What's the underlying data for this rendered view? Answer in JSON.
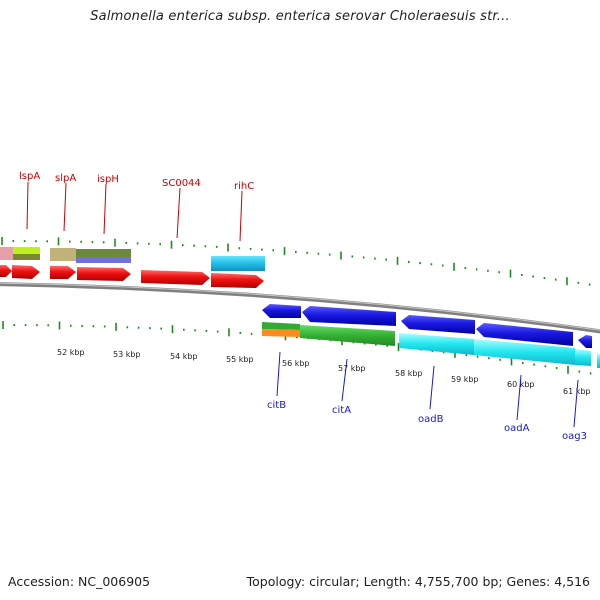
{
  "header": {
    "title": "Salmonella enterica subsp. enterica serovar Choleraesuis str..."
  },
  "footer": {
    "accession": "Accession: NC_006905",
    "summary": "Topology: circular; Length: 4,755,700 bp; Genes: 4,516"
  },
  "map": {
    "kbp_labels": [
      "52 kbp",
      "53 kbp",
      "54 kbp",
      "55 kbp",
      "56 kbp",
      "57 kbp",
      "58 kbp",
      "59 kbp",
      "60 kbp",
      "61 kbp"
    ],
    "forward_gene_labels": [
      "lspA",
      "slpA",
      "ispH",
      "SC0044",
      "rihC"
    ],
    "reverse_gene_labels": [
      "citB",
      "citA",
      "oadB",
      "oadA",
      "oag3"
    ]
  },
  "colors": {
    "backbone": "#808080",
    "forward_label": "#cc0000",
    "reverse_label": "#1a1acc",
    "forward_cds": "#ee1111",
    "reverse_cds": "#1818e0",
    "tick": "#228822"
  }
}
